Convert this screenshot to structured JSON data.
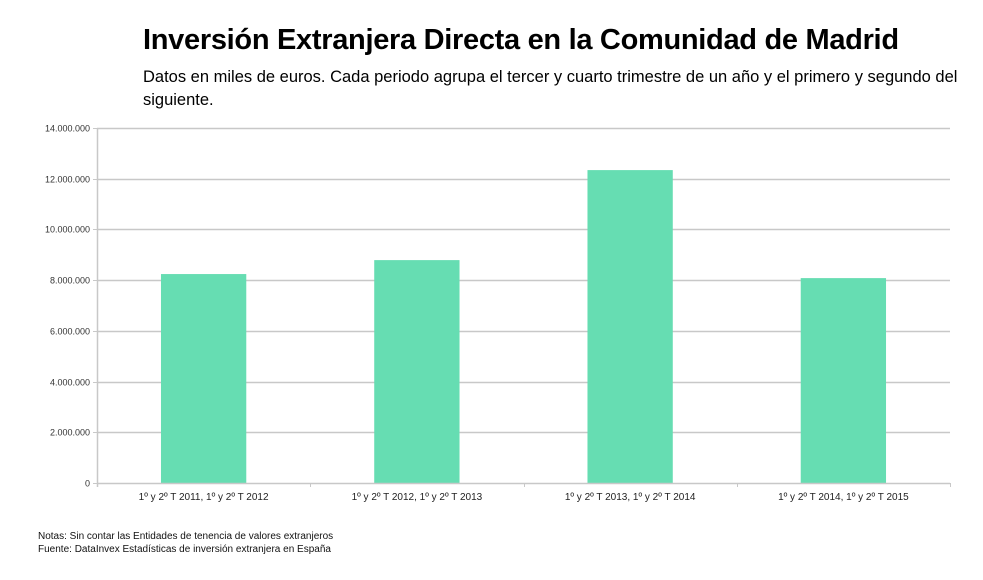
{
  "header": {
    "title": "Inversión Extranjera Directa en la Comunidad de Madrid",
    "subtitle": "Datos en miles de euros. Cada periodo agrupa el tercer y cuarto trimestre de un año y el primero y segundo del siguiente."
  },
  "footer": {
    "notes": "Notas: Sin contar las Entidades de tenencia de valores extranjeros",
    "source": "Fuente: DataInvex Estadísticas de inversión extranjera en España"
  },
  "chart_data": {
    "type": "bar",
    "title": "Inversión Extranjera Directa en la Comunidad de Madrid",
    "subtitle": "Datos en miles de euros. Cada periodo agrupa el tercer y cuarto trimestre de un año y el primero y segundo del siguiente.",
    "xlabel": "",
    "ylabel": "",
    "categories": [
      "1º y 2º T 2011, 1º y 2º T 2012",
      "1º y 2º T 2012, 1º y 2º T 2013",
      "1º y 2º T 2013, 1º y 2º T 2014",
      "1º y 2º T 2014, 1º y 2º T 2015"
    ],
    "values": [
      8240000,
      8790000,
      12340000,
      8080000
    ],
    "ylim": [
      0,
      14000000
    ],
    "yticks": [
      0,
      2000000,
      4000000,
      6000000,
      8000000,
      10000000,
      12000000,
      14000000
    ],
    "ytick_labels": [
      "0",
      "2.000.000",
      "4.000.000",
      "6.000.000",
      "8.000.000",
      "10.000.000",
      "12.000.000",
      "14.000.000"
    ],
    "grid": true,
    "legend": "none",
    "bar_color": "#66DDB2",
    "grid_color": "#c8c8c8"
  }
}
